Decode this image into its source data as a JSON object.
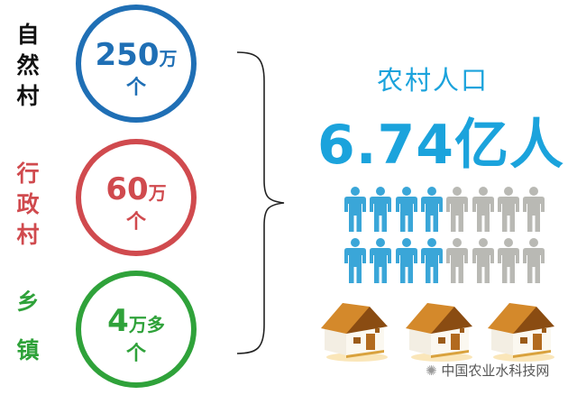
{
  "colors": {
    "village": "#1f6fb5",
    "admin": "#d04a4e",
    "town": "#2fa23a",
    "headline": "#1ba3dc",
    "person_filled": "#3aa6d8",
    "person_empty": "#b9b9b4"
  },
  "items": [
    {
      "label": "自然村",
      "value": "250",
      "suffix": "万",
      "unit": "个"
    },
    {
      "label": "行政村",
      "value": "60",
      "suffix": "万",
      "unit": "个"
    },
    {
      "label": "乡镇",
      "label_chars": [
        "乡",
        "镇"
      ],
      "value": "4",
      "suffix": "万多",
      "unit": "个"
    }
  ],
  "headline": {
    "title": "农村人口",
    "value": "6.74亿人"
  },
  "people": {
    "total": 16,
    "highlighted": 8,
    "per_row_highlighted": 4
  },
  "houses": 3,
  "watermark": "中国农业水科技网"
}
